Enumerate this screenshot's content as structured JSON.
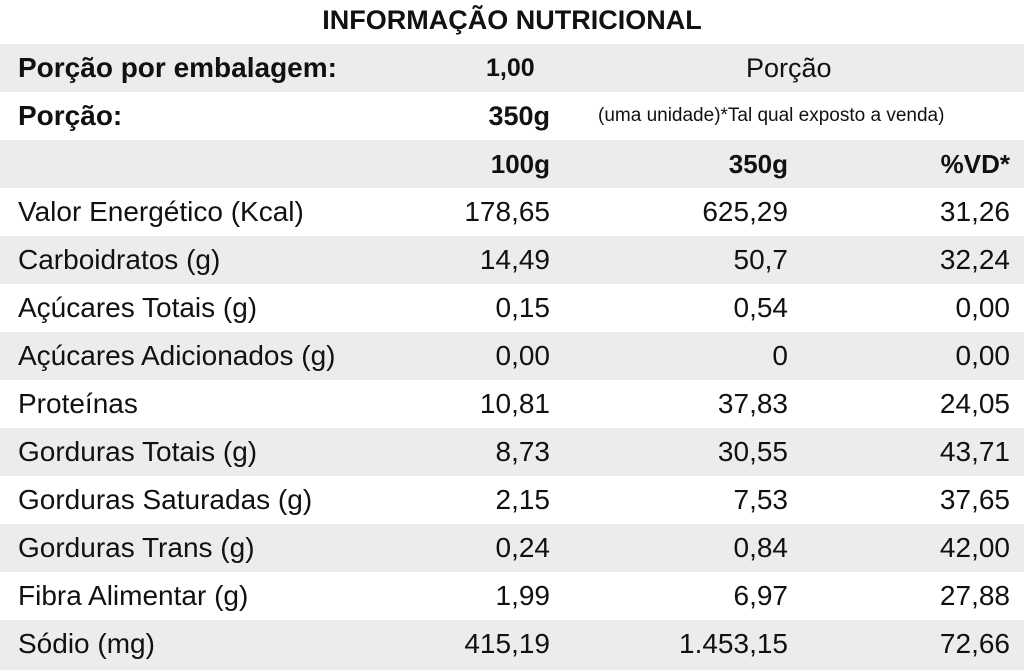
{
  "title": "INFORMAÇÃO NUTRICIONAL",
  "header": {
    "porcoes_label": "Porção por embalagem:",
    "porcoes_value": "1,00",
    "porcao_heading": "Porção",
    "porcao_label": "Porção:",
    "porcao_value": "350g",
    "porcao_note": "(uma unidade)*Tal qual exposto a venda)"
  },
  "columns": {
    "per100": "100g",
    "per350": "350g",
    "vd": "%VD*"
  },
  "nutrients": [
    {
      "name": "Valor Energético (Kcal)",
      "per100": "178,65",
      "per350": "625,29",
      "vd": "31,26"
    },
    {
      "name": "Carboidratos (g)",
      "per100": "14,49",
      "per350": "50,7",
      "vd": "32,24"
    },
    {
      "name": "Açúcares Totais (g)",
      "per100": "0,15",
      "per350": "0,54",
      "vd": "0,00"
    },
    {
      "name": "Açúcares Adicionados (g)",
      "per100": "0,00",
      "per350": "0",
      "vd": "0,00"
    },
    {
      "name": "Proteínas",
      "per100": "10,81",
      "per350": "37,83",
      "vd": "24,05"
    },
    {
      "name": "Gorduras Totais (g)",
      "per100": "8,73",
      "per350": "30,55",
      "vd": "43,71"
    },
    {
      "name": "Gorduras Saturadas (g)",
      "per100": "2,15",
      "per350": "7,53",
      "vd": "37,65"
    },
    {
      "name": "Gorduras Trans (g)",
      "per100": "0,24",
      "per350": "0,84",
      "vd": "42,00"
    },
    {
      "name": "Fibra Alimentar (g)",
      "per100": "1,99",
      "per350": "6,97",
      "vd": "27,88"
    },
    {
      "name": "Sódio (mg)",
      "per100": "415,19",
      "per350": "1.453,15",
      "vd": "72,66"
    }
  ]
}
